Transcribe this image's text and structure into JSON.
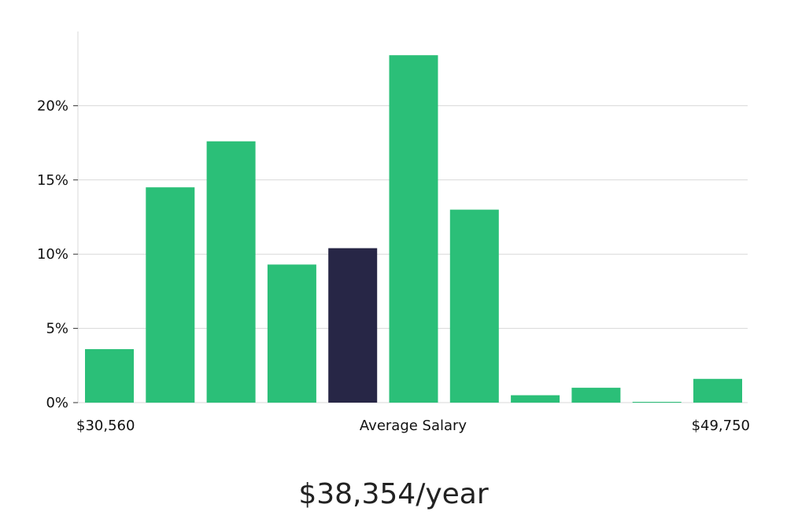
{
  "chart_data": {
    "type": "bar",
    "categories": [
      "bin-1",
      "bin-2",
      "bin-3",
      "bin-4",
      "bin-5",
      "bin-6",
      "bin-7",
      "bin-8",
      "bin-9",
      "bin-10",
      "bin-11"
    ],
    "values": [
      3.6,
      14.5,
      17.6,
      9.3,
      10.4,
      23.4,
      13.0,
      0.5,
      1.0,
      0.05,
      1.6
    ],
    "highlight_index": 4,
    "ylim": [
      0,
      25
    ],
    "yticks": [
      0,
      5,
      10,
      15,
      20
    ],
    "ytick_labels": [
      "0%",
      "5%",
      "10%",
      "15%",
      "20%"
    ],
    "grid": true,
    "x_labels": {
      "left": "$30,560",
      "center": "Average Salary",
      "right": "$49,750"
    }
  },
  "colors": {
    "bar": "#2bbf78",
    "highlight": "#272646",
    "grid": "#d8d8d8",
    "axis": "#d8d8d8"
  },
  "summary": {
    "average_salary": "$38,354/year"
  }
}
